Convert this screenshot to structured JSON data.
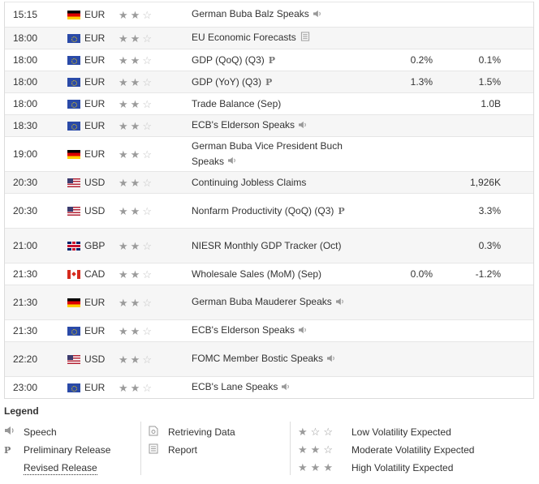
{
  "events": [
    {
      "time": "15:15",
      "flag": "de",
      "currency": "EUR",
      "stars": 2,
      "event": "German Buba Balz Speaks",
      "icon": "speech",
      "actual": "",
      "previous": "",
      "h": 30
    },
    {
      "time": "18:00",
      "flag": "eu",
      "currency": "EUR",
      "stars": 2,
      "event": "EU Economic Forecasts",
      "icon": "report",
      "actual": "",
      "previous": "",
      "h": 26
    },
    {
      "time": "18:00",
      "flag": "eu",
      "currency": "EUR",
      "stars": 2,
      "event": "GDP (QoQ) (Q3)",
      "icon": "prelim",
      "actual": "0.2%",
      "previous": "0.1%",
      "h": 26
    },
    {
      "time": "18:00",
      "flag": "eu",
      "currency": "EUR",
      "stars": 2,
      "event": "GDP (YoY) (Q3)",
      "icon": "prelim",
      "actual": "1.3%",
      "previous": "1.5%",
      "h": 26
    },
    {
      "time": "18:00",
      "flag": "eu",
      "currency": "EUR",
      "stars": 2,
      "event": "Trade Balance (Sep)",
      "icon": "",
      "actual": "",
      "previous": "1.0B",
      "h": 26
    },
    {
      "time": "18:30",
      "flag": "eu",
      "currency": "EUR",
      "stars": 2,
      "event": "ECB's Elderson Speaks",
      "icon": "speech",
      "actual": "",
      "previous": "",
      "h": 26
    },
    {
      "time": "19:00",
      "flag": "de",
      "currency": "EUR",
      "stars": 2,
      "event": "German Buba Vice President Buch Speaks",
      "icon": "speech",
      "actual": "",
      "previous": "",
      "h": 42
    },
    {
      "time": "20:30",
      "flag": "us",
      "currency": "USD",
      "stars": 2,
      "event": "Continuing Jobless Claims",
      "icon": "",
      "actual": "",
      "previous": "1,926K",
      "h": 26
    },
    {
      "time": "20:30",
      "flag": "us",
      "currency": "USD",
      "stars": 2,
      "event": "Nonfarm Productivity (QoQ) (Q3)",
      "icon": "prelim",
      "actual": "",
      "previous": "3.3%",
      "h": 42
    },
    {
      "time": "21:00",
      "flag": "gb",
      "currency": "GBP",
      "stars": 2,
      "event": "NIESR Monthly GDP Tracker (Oct)",
      "icon": "",
      "actual": "",
      "previous": "0.3%",
      "h": 42
    },
    {
      "time": "21:30",
      "flag": "ca",
      "currency": "CAD",
      "stars": 2,
      "event": "Wholesale Sales (MoM) (Sep)",
      "icon": "",
      "actual": "0.0%",
      "previous": "-1.2%",
      "h": 26
    },
    {
      "time": "21:30",
      "flag": "de",
      "currency": "EUR",
      "stars": 2,
      "event": "German Buba Mauderer Speaks",
      "icon": "speech",
      "actual": "",
      "previous": "",
      "h": 42
    },
    {
      "time": "21:30",
      "flag": "eu",
      "currency": "EUR",
      "stars": 2,
      "event": "ECB's Elderson Speaks",
      "icon": "speech",
      "actual": "",
      "previous": "",
      "h": 26
    },
    {
      "time": "22:20",
      "flag": "us",
      "currency": "USD",
      "stars": 2,
      "event": "FOMC Member Bostic Speaks",
      "icon": "speech",
      "actual": "",
      "previous": "",
      "h": 42
    },
    {
      "time": "23:00",
      "flag": "eu",
      "currency": "EUR",
      "stars": 2,
      "event": "ECB's Lane Speaks",
      "icon": "speech",
      "actual": "",
      "previous": "",
      "h": 26
    }
  ],
  "legend": {
    "title": "Legend",
    "speech": "Speech",
    "preliminary": "Preliminary Release",
    "revised": "Revised Release",
    "retrieving": "Retrieving Data",
    "report": "Report",
    "low": "Low Volatility Expected",
    "moderate": "Moderate Volatility Expected",
    "high": "High Volatility Expected"
  }
}
